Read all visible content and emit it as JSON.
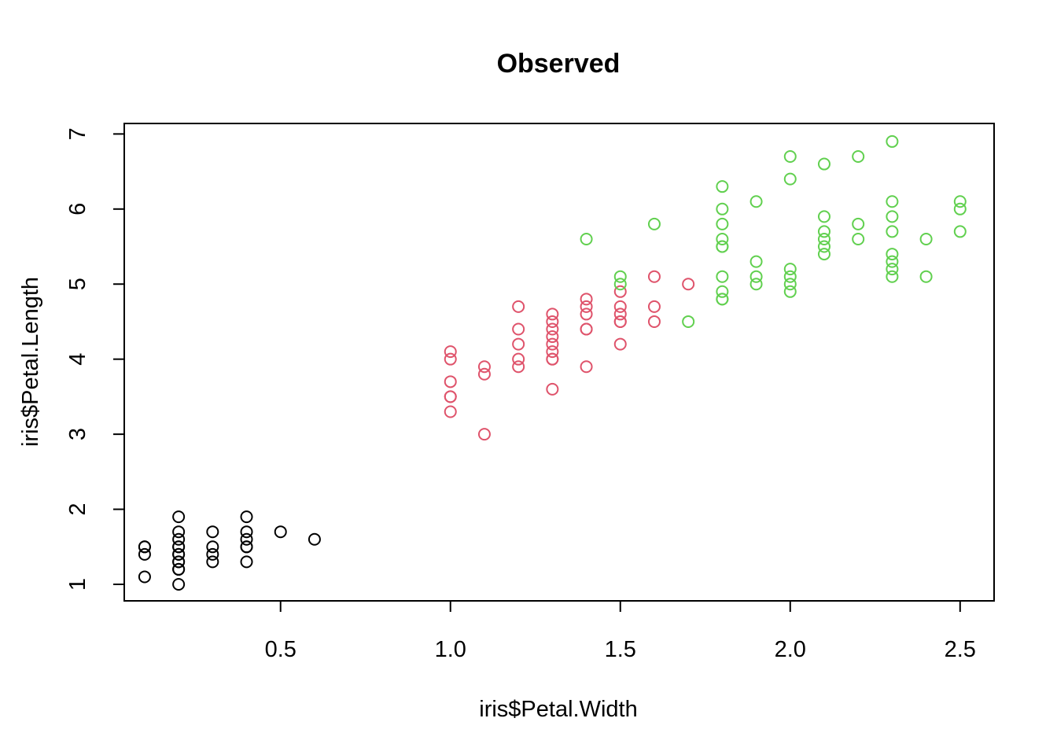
{
  "chart_data": {
    "type": "scatter",
    "title": "Observed",
    "xlabel": "iris$Petal.Width",
    "ylabel": "iris$Petal.Length",
    "xlim": [
      0.04,
      2.6
    ],
    "ylim": [
      0.78,
      7.14
    ],
    "xticks": [
      0.5,
      1.0,
      1.5,
      2.0,
      2.5
    ],
    "xtick_labels": [
      "0.5",
      "1.0",
      "1.5",
      "2.0",
      "2.5"
    ],
    "yticks": [
      1,
      2,
      3,
      4,
      5,
      6,
      7
    ],
    "ytick_labels": [
      "1",
      "2",
      "3",
      "4",
      "5",
      "6",
      "7"
    ],
    "grid": false,
    "legend": "none",
    "marker": "open-circle",
    "series": [
      {
        "color": "#000000",
        "x": [
          0.1,
          0.1,
          0.1,
          0.1,
          0.2,
          0.2,
          0.2,
          0.2,
          0.2,
          0.2,
          0.2,
          0.2,
          0.2,
          0.2,
          0.2,
          0.2,
          0.3,
          0.3,
          0.3,
          0.3,
          0.4,
          0.4,
          0.4,
          0.4,
          0.4,
          0.4,
          0.5,
          0.6
        ],
        "y": [
          1.5,
          1.4,
          1.5,
          1.1,
          1.0,
          1.2,
          1.3,
          1.4,
          1.5,
          1.6,
          1.7,
          1.9,
          1.4,
          1.5,
          1.2,
          1.3,
          1.3,
          1.4,
          1.5,
          1.7,
          1.3,
          1.5,
          1.6,
          1.7,
          1.9,
          1.5,
          1.7,
          1.6
        ]
      },
      {
        "color": "#DF536B",
        "x": [
          1.0,
          1.0,
          1.0,
          1.0,
          1.0,
          1.0,
          1.1,
          1.1,
          1.1,
          1.2,
          1.2,
          1.2,
          1.2,
          1.2,
          1.3,
          1.3,
          1.3,
          1.3,
          1.3,
          1.3,
          1.3,
          1.3,
          1.3,
          1.4,
          1.4,
          1.4,
          1.4,
          1.4,
          1.4,
          1.5,
          1.5,
          1.5,
          1.5,
          1.5,
          1.5,
          1.6,
          1.6,
          1.6,
          1.7
        ],
        "y": [
          3.3,
          3.5,
          3.7,
          4.0,
          4.1,
          3.5,
          3.0,
          3.8,
          3.9,
          3.9,
          4.0,
          4.2,
          4.4,
          4.7,
          3.6,
          4.0,
          4.1,
          4.2,
          4.3,
          4.4,
          4.5,
          4.6,
          4.0,
          3.9,
          4.4,
          4.6,
          4.7,
          4.8,
          4.4,
          4.2,
          4.5,
          4.6,
          4.7,
          4.9,
          4.5,
          4.5,
          4.7,
          5.1,
          5.0
        ]
      },
      {
        "color": "#61D04F",
        "x": [
          1.4,
          1.5,
          1.5,
          1.6,
          1.7,
          1.8,
          1.8,
          1.8,
          1.8,
          1.8,
          1.8,
          1.8,
          1.8,
          1.8,
          1.8,
          1.9,
          1.9,
          1.9,
          1.9,
          2.0,
          2.0,
          2.0,
          2.0,
          2.0,
          2.0,
          2.1,
          2.1,
          2.1,
          2.1,
          2.1,
          2.1,
          2.2,
          2.2,
          2.2,
          2.3,
          2.3,
          2.3,
          2.3,
          2.3,
          2.3,
          2.3,
          2.3,
          2.4,
          2.4,
          2.5,
          2.5,
          2.5
        ],
        "y": [
          5.6,
          5.1,
          5.0,
          5.8,
          4.5,
          4.8,
          4.9,
          5.1,
          5.5,
          5.6,
          5.8,
          6.0,
          6.3,
          4.8,
          5.5,
          5.0,
          5.1,
          5.3,
          6.1,
          4.9,
          5.0,
          5.1,
          5.2,
          6.4,
          6.7,
          5.4,
          5.5,
          5.6,
          5.7,
          5.9,
          6.6,
          5.6,
          5.8,
          6.7,
          5.1,
          5.2,
          5.3,
          5.4,
          5.7,
          5.9,
          6.1,
          6.9,
          5.1,
          5.6,
          5.7,
          6.0,
          6.1
        ]
      }
    ]
  }
}
